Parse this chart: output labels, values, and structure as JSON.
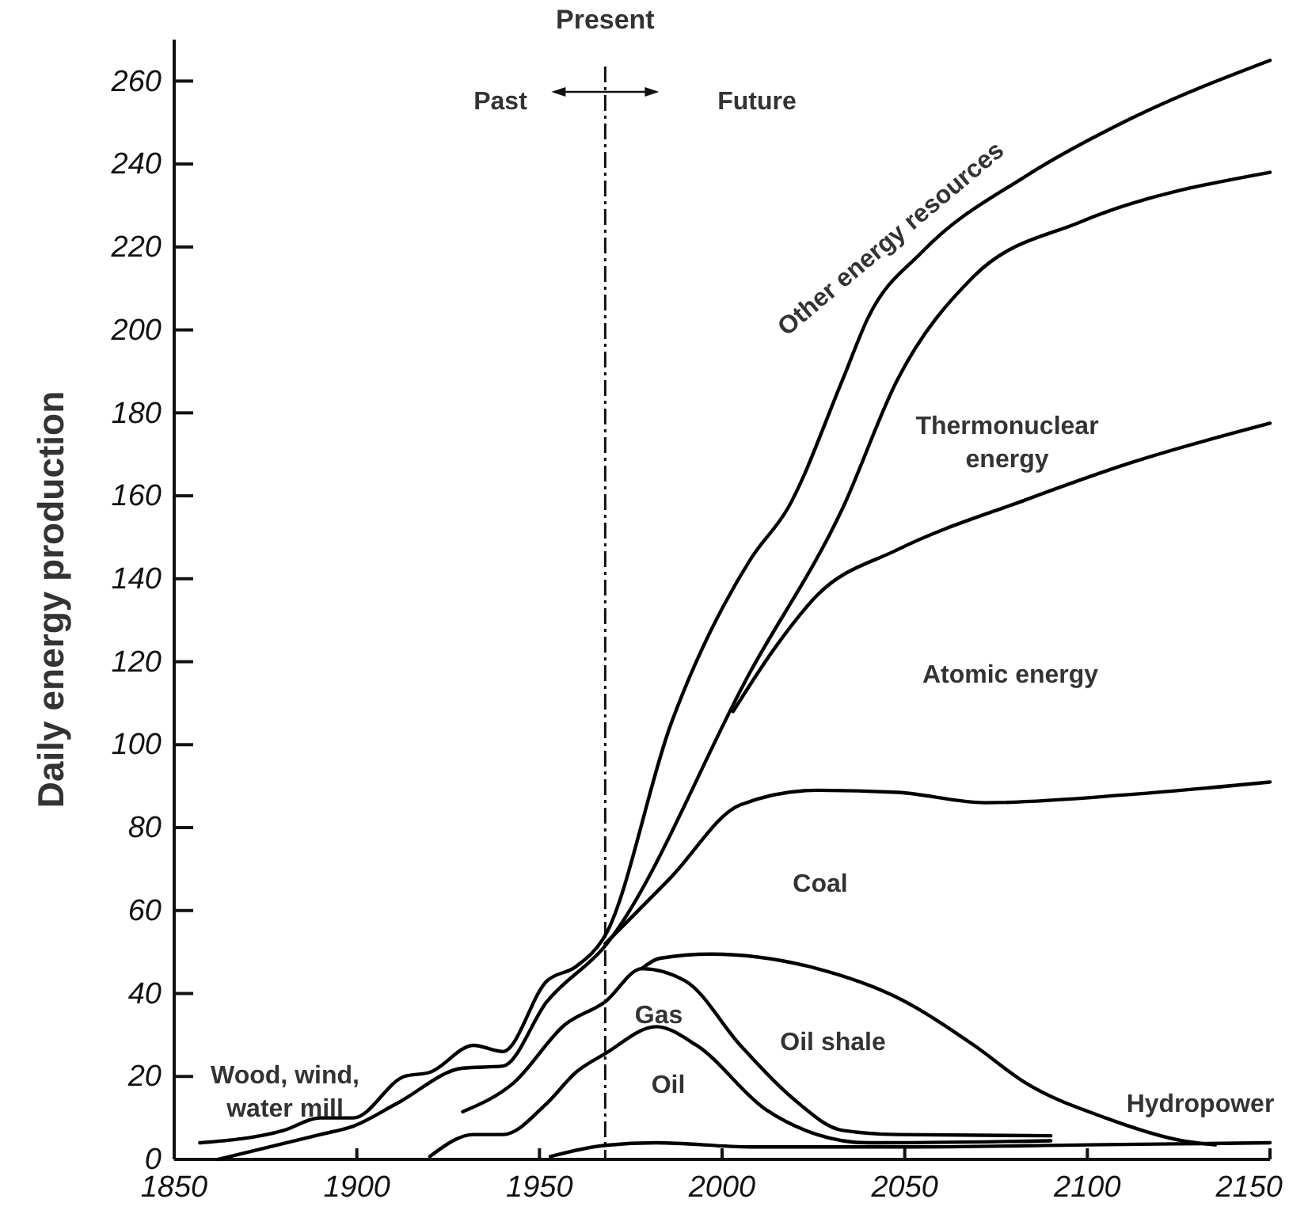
{
  "chart_data": {
    "type": "line",
    "ylabel": "Daily energy production",
    "xlim": [
      1850,
      2150
    ],
    "xticks": [
      1850,
      1900,
      1950,
      2000,
      2050,
      2100,
      2150
    ],
    "ylim": [
      0,
      270
    ],
    "yticks": [
      0,
      20,
      40,
      60,
      80,
      100,
      120,
      140,
      160,
      180,
      200,
      220,
      240,
      260
    ],
    "grid": false,
    "marker": "none",
    "line_style": "solid",
    "series": [
      {
        "color": "#000000",
        "x": [
          1857,
          1880,
          1890,
          1899,
          1913,
          1920,
          1932,
          1940,
          1952,
          1960,
          1968,
          1986,
          2008,
          2018,
          2033,
          2040,
          2055,
          2083,
          2112,
          2150
        ],
        "values": [
          4,
          7,
          10,
          10,
          20,
          21,
          27.5,
          26,
          43,
          46.5,
          54,
          105,
          145,
          157,
          188,
          203,
          219,
          237,
          251,
          265
        ]
      },
      {
        "color": "#000000",
        "x": [
          1862,
          1890,
          1899,
          1911,
          1929,
          1940,
          1952,
          1968,
          2008,
          2033,
          2048,
          2069,
          2098,
          2150
        ],
        "values": [
          0,
          6,
          8,
          13.5,
          22,
          22.5,
          38,
          51.5,
          118,
          157,
          188,
          213,
          226,
          238
        ]
      },
      {
        "color": "#000000",
        "x": [
          2003,
          2015,
          2026,
          2048,
          2083,
          2112,
          2150
        ],
        "values": [
          108,
          124,
          136,
          147,
          159,
          168,
          177.5
        ]
      },
      {
        "color": "#000000",
        "x": [
          1968,
          1986,
          2005,
          2026,
          2048,
          2072,
          2112,
          2150
        ],
        "values": [
          52,
          68,
          85.5,
          89,
          88.5,
          86,
          88,
          91
        ]
      },
      {
        "color": "#000000",
        "x": [
          1978,
          1983,
          1997,
          2026,
          2048,
          2069,
          2083,
          2105,
          2126,
          2135
        ],
        "values": [
          46,
          48.5,
          49.5,
          46,
          39,
          27.5,
          18.5,
          10,
          4.5,
          3.5
        ]
      },
      {
        "color": "#000000",
        "x": [
          1929,
          1943,
          1957,
          1968,
          1978,
          1990,
          2005,
          2019,
          2033,
          2048,
          2090
        ],
        "values": [
          11.5,
          18.5,
          32.5,
          38,
          46,
          43,
          27.5,
          15,
          7,
          6,
          5.7
        ]
      },
      {
        "color": "#000000",
        "x": [
          1920,
          1932,
          1940,
          1952,
          1960,
          1968,
          1982,
          1993,
          2012,
          2026,
          2040,
          2090
        ],
        "values": [
          0.7,
          6,
          6,
          13.5,
          21,
          25.5,
          32,
          27.5,
          12,
          6,
          4,
          4.5
        ]
      },
      {
        "color": "#000000",
        "x": [
          1953,
          1968,
          1982,
          2008,
          2050,
          2100,
          2150
        ],
        "values": [
          0.7,
          3.4,
          4,
          3,
          3,
          3.5,
          4
        ]
      }
    ],
    "ref_lines": [
      {
        "axis": "x",
        "value": 1968,
        "label": "Present",
        "line_style": "dashdot"
      }
    ],
    "annotations": [
      "Past",
      "Future",
      "Other energy resources",
      "Thermonuclear\nenergy",
      "Atomic energy",
      "Coal",
      "Gas",
      "Oil shale",
      "Oil",
      "Wood, wind,\nwater mill",
      "Hydropower"
    ]
  }
}
